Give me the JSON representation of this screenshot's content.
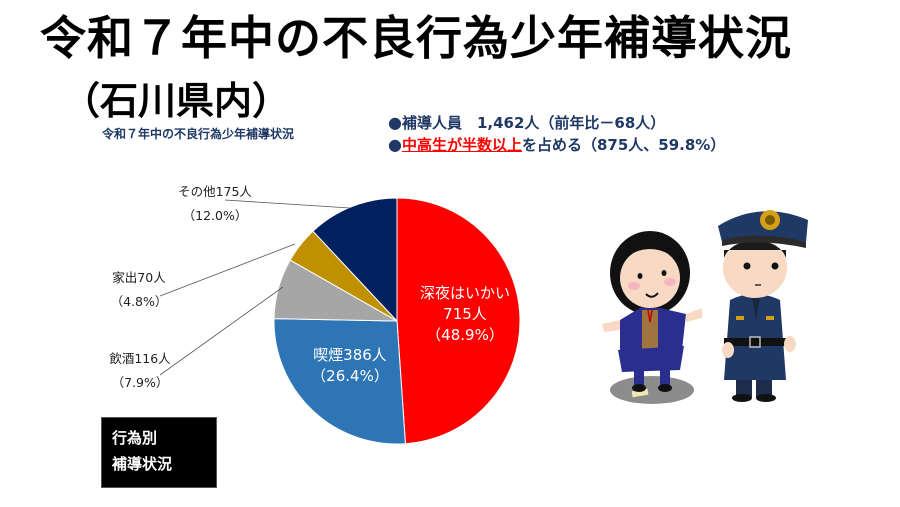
{
  "header": {
    "title": "令和７年中の不良行為少年補導状況",
    "subtitle": "（石川県内）"
  },
  "summary": {
    "line1_bullet": "●",
    "line1_text": "補導人員　1,462人（前年比－68人）",
    "line2_bullet": "●",
    "line2_highlight": "中高生が半数以上",
    "line2_text": "を占める（875人、59.8%）"
  },
  "legend_box": {
    "line1": "行為別",
    "line2": "補導状況"
  },
  "chart_data": {
    "type": "pie",
    "title": "令和７年中の不良行為少年補導状況",
    "total": 1462,
    "unit": "人",
    "start_angle": "12 o'clock",
    "direction": "clockwise",
    "slices": [
      {
        "label": "深夜はいかい",
        "value": 715,
        "percent": 48.9,
        "color": "#ff0000",
        "label_line1": "深夜はいかい",
        "label_line2": "715人",
        "label_line3": "（48.9%）"
      },
      {
        "label": "喫煙",
        "value": 386,
        "percent": 26.4,
        "color": "#2e75b6",
        "label_line1": "喫煙386人",
        "label_line2": "（26.4%）"
      },
      {
        "label": "飲酒",
        "value": 116,
        "percent": 7.9,
        "color": "#a6a6a6",
        "label_line1": "飲酒116人",
        "label_line2": "（7.9%）"
      },
      {
        "label": "家出",
        "value": 70,
        "percent": 4.8,
        "color": "#bf9000",
        "label_line1": "家出70人",
        "label_line2": "（4.8%）"
      },
      {
        "label": "その他",
        "value": 175,
        "percent": 12.0,
        "color": "#002060",
        "label_line1": "その他175人",
        "label_line2": "（12.0%）"
      }
    ]
  },
  "illustration": {
    "description": "police-officer-and-girl-icon"
  }
}
